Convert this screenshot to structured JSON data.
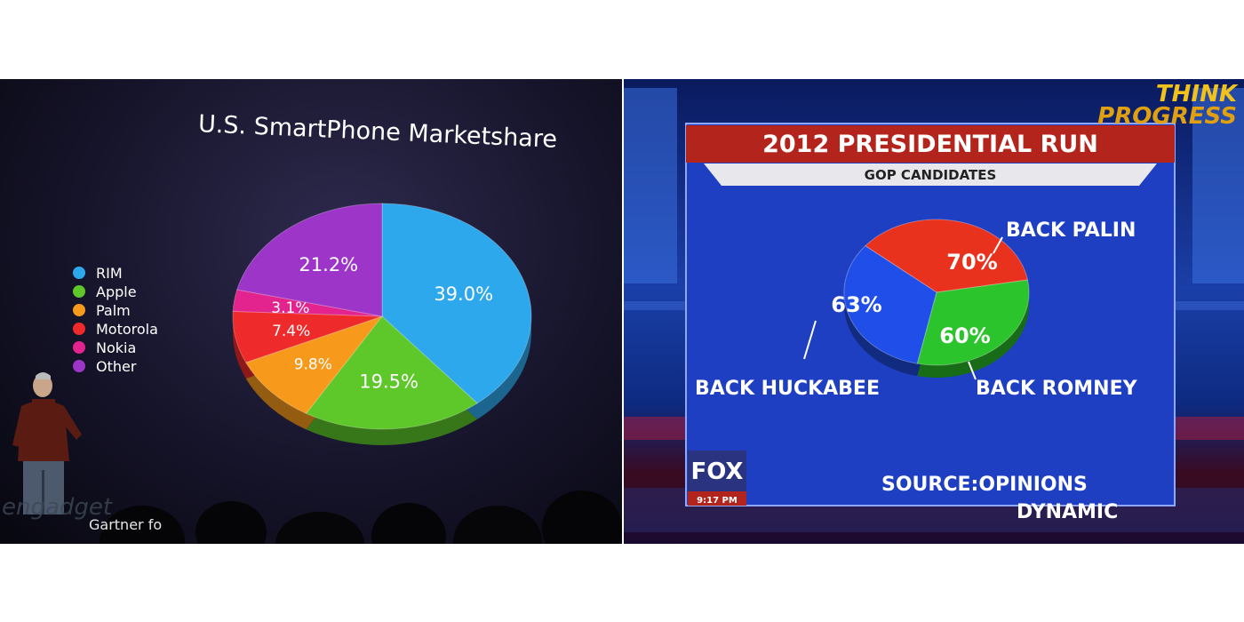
{
  "left": {
    "title": "U.S. SmartPhone Marketshare",
    "footer_text": "Gartner fo",
    "watermark": "engadget",
    "chart_data": {
      "type": "pie",
      "title": "U.S. SmartPhone Marketshare",
      "legend_position": "left",
      "slices": [
        {
          "label": "RIM",
          "value": 39.0,
          "value_label": "39.0%",
          "color": "#2ea8ec"
        },
        {
          "label": "Apple",
          "value": 19.5,
          "value_label": "19.5%",
          "color": "#5ec72a"
        },
        {
          "label": "Palm",
          "value": 9.8,
          "value_label": "9.8%",
          "color": "#f79a1c"
        },
        {
          "label": "Motorola",
          "value": 7.4,
          "value_label": "7.4%",
          "color": "#ee2a2a"
        },
        {
          "label": "Nokia",
          "value": 3.1,
          "value_label": "3.1%",
          "color": "#e3248e"
        },
        {
          "label": "Other",
          "value": 21.2,
          "value_label": "21.2%",
          "color": "#9d35c8"
        }
      ]
    }
  },
  "right": {
    "watermark_line1": "THINK",
    "watermark_line2": "PROGRESS",
    "title": "2012 PRESIDENTIAL RUN",
    "subtitle": "GOP CANDIDATES",
    "source_line1": "SOURCE:OPINIONS",
    "source_line2": "DYNAMIC",
    "network_logo": "FOX",
    "time": "9:17 PM",
    "chart_data": {
      "type": "pie",
      "title": "2012 PRESIDENTIAL RUN",
      "subtitle": "GOP CANDIDATES",
      "slices": [
        {
          "label": "BACK PALIN",
          "value": 70,
          "value_label": "70%",
          "color": "#e8321e"
        },
        {
          "label": "BACK ROMNEY",
          "value": 60,
          "value_label": "60%",
          "color": "#2cc42c"
        },
        {
          "label": "BACK HUCKABEE",
          "value": 63,
          "value_label": "63%",
          "color": "#1f4ee8"
        }
      ]
    }
  }
}
